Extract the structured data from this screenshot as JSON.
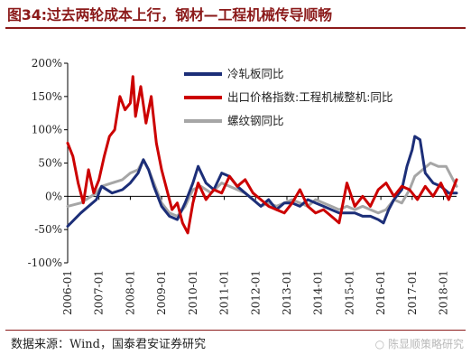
{
  "header": {
    "title": "图34:过去两轮成本上行，钢材—工程机械传导顺畅"
  },
  "footer": {
    "source": "数据来源：Wind，国泰君安证券研究",
    "watermark": "陈显顺策略研究"
  },
  "chart_data": {
    "type": "line",
    "title": "图34:过去两轮成本上行，钢材—工程机械传导顺畅",
    "xlabel": "",
    "ylabel": "",
    "ylim": [
      -100,
      200
    ],
    "xlim": [
      "2006-01",
      "2018-06"
    ],
    "y_ticks": [
      -100,
      -50,
      0,
      50,
      100,
      150,
      200
    ],
    "y_tick_labels": [
      "-100%",
      "-50%",
      "0%",
      "50%",
      "100%",
      "150%",
      "200%"
    ],
    "x_tick_labels": [
      "2006-01",
      "2007-01",
      "2008-01",
      "2009-01",
      "2010-01",
      "2011-01",
      "2012-01",
      "2013-01",
      "2014-01",
      "2015-01",
      "2016-01",
      "2017-01",
      "2018-01"
    ],
    "y_unit": "%",
    "legend_position": "top-right",
    "colors": {
      "cold_rolled": "#1C2E78",
      "export": "#CC0000",
      "rebar": "#A6A6A6"
    },
    "series": [
      {
        "name": "冷轧板同比",
        "key": "cold_rolled",
        "x": [
          "2006-01",
          "2006-06",
          "2006-12",
          "2007-02",
          "2007-06",
          "2007-10",
          "2008-01",
          "2008-04",
          "2008-06",
          "2008-08",
          "2008-10",
          "2009-01",
          "2009-04",
          "2009-07",
          "2009-10",
          "2010-01",
          "2010-03",
          "2010-06",
          "2010-09",
          "2010-12",
          "2011-03",
          "2011-06",
          "2011-09",
          "2011-12",
          "2012-03",
          "2012-06",
          "2012-09",
          "2012-12",
          "2013-03",
          "2013-06",
          "2013-09",
          "2013-12",
          "2014-03",
          "2014-06",
          "2014-09",
          "2014-12",
          "2015-03",
          "2015-06",
          "2015-09",
          "2015-12",
          "2016-02",
          "2016-04",
          "2016-06",
          "2016-09",
          "2016-11",
          "2017-01",
          "2017-02",
          "2017-04",
          "2017-06",
          "2017-09",
          "2017-12",
          "2018-03",
          "2018-06"
        ],
        "values": [
          -45,
          -25,
          -5,
          15,
          5,
          10,
          20,
          35,
          55,
          40,
          15,
          -15,
          -30,
          -35,
          -10,
          20,
          45,
          20,
          10,
          35,
          30,
          15,
          5,
          -5,
          -15,
          -5,
          -20,
          -10,
          -10,
          -15,
          -5,
          -10,
          -15,
          -20,
          -25,
          -25,
          -25,
          -30,
          -30,
          -35,
          -40,
          -20,
          -5,
          10,
          45,
          70,
          90,
          85,
          35,
          20,
          15,
          5,
          5
        ]
      },
      {
        "name": "出口价格指数:工程机械整机:同比",
        "key": "export",
        "x": [
          "2006-01",
          "2006-03",
          "2006-05",
          "2006-07",
          "2006-09",
          "2006-11",
          "2007-01",
          "2007-03",
          "2007-05",
          "2007-07",
          "2007-09",
          "2007-11",
          "2008-01",
          "2008-02",
          "2008-03",
          "2008-05",
          "2008-07",
          "2008-09",
          "2008-11",
          "2009-01",
          "2009-03",
          "2009-05",
          "2009-07",
          "2009-09",
          "2009-11",
          "2010-01",
          "2010-03",
          "2010-06",
          "2010-09",
          "2010-12",
          "2011-03",
          "2011-06",
          "2011-09",
          "2011-12",
          "2012-03",
          "2012-06",
          "2012-09",
          "2012-12",
          "2013-03",
          "2013-06",
          "2013-09",
          "2013-12",
          "2014-03",
          "2014-06",
          "2014-09",
          "2014-12",
          "2015-03",
          "2015-06",
          "2015-09",
          "2015-12",
          "2016-03",
          "2016-06",
          "2016-09",
          "2016-12",
          "2017-03",
          "2017-06",
          "2017-09",
          "2017-12",
          "2018-03",
          "2018-06"
        ],
        "values": [
          80,
          60,
          20,
          -10,
          40,
          5,
          25,
          60,
          90,
          100,
          150,
          130,
          140,
          180,
          120,
          165,
          110,
          150,
          80,
          40,
          10,
          -20,
          -10,
          -40,
          -55,
          -10,
          20,
          -5,
          10,
          5,
          30,
          15,
          25,
          5,
          -5,
          -15,
          -20,
          -25,
          -10,
          10,
          -15,
          -25,
          -20,
          -30,
          -40,
          20,
          -15,
          0,
          -15,
          10,
          20,
          0,
          15,
          10,
          -5,
          15,
          0,
          20,
          -5,
          25
        ]
      },
      {
        "name": "螺纹钢同比",
        "key": "rebar",
        "x": [
          "2006-01",
          "2006-06",
          "2006-12",
          "2007-02",
          "2007-06",
          "2007-10",
          "2008-01",
          "2008-04",
          "2008-06",
          "2008-08",
          "2008-10",
          "2009-01",
          "2009-04",
          "2009-07",
          "2009-10",
          "2010-01",
          "2010-04",
          "2010-08",
          "2010-12",
          "2011-03",
          "2011-06",
          "2011-09",
          "2011-12",
          "2012-03",
          "2012-06",
          "2012-09",
          "2012-12",
          "2013-03",
          "2013-06",
          "2013-09",
          "2013-12",
          "2014-03",
          "2014-06",
          "2014-09",
          "2014-12",
          "2015-03",
          "2015-06",
          "2015-09",
          "2015-12",
          "2016-03",
          "2016-06",
          "2016-09",
          "2016-12",
          "2017-02",
          "2017-05",
          "2017-08",
          "2017-11",
          "2018-02",
          "2018-06"
        ],
        "values": [
          -15,
          -10,
          5,
          15,
          20,
          25,
          35,
          40,
          55,
          40,
          20,
          -10,
          -25,
          -30,
          -15,
          10,
          15,
          5,
          20,
          15,
          10,
          5,
          -5,
          -15,
          -10,
          -15,
          -10,
          -5,
          -10,
          -15,
          -5,
          -10,
          -15,
          -20,
          -15,
          -20,
          -15,
          -20,
          -25,
          -20,
          -5,
          -10,
          10,
          30,
          40,
          50,
          45,
          45,
          15
        ]
      }
    ]
  }
}
